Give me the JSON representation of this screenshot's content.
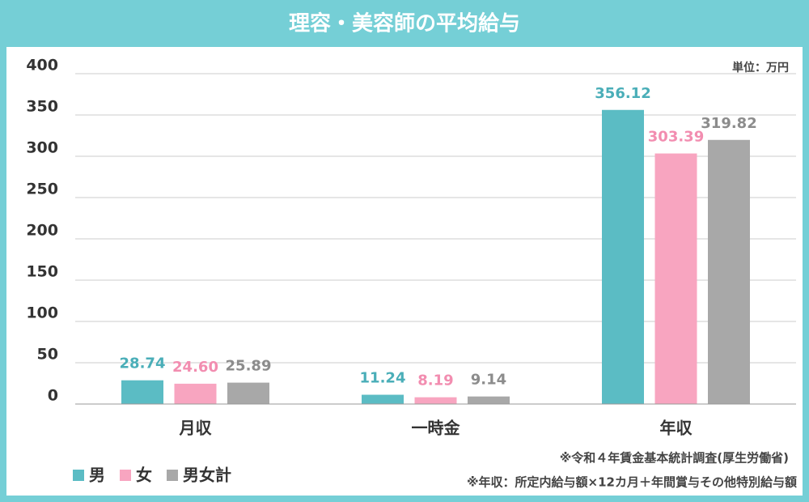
{
  "chart_data": {
    "type": "bar",
    "title": "理容・美容師の平均給与",
    "unit": "単位：万円",
    "categories": [
      "月収",
      "一時金",
      "年収"
    ],
    "series": [
      {
        "name": "男",
        "color": "#5bbcc4",
        "label_color": "#4aaeb8",
        "values": [
          28.74,
          11.24,
          356.12
        ],
        "value_labels": [
          "28.74",
          "11.24",
          "356.12"
        ]
      },
      {
        "name": "女",
        "color": "#f8a5c0",
        "label_color": "#f28db0",
        "values": [
          24.6,
          8.19,
          303.39
        ],
        "value_labels": [
          "24.60",
          "8.19",
          "303.39"
        ]
      },
      {
        "name": "男女計",
        "color": "#a8a8a8",
        "label_color": "#8c8c8c",
        "values": [
          25.89,
          9.14,
          319.82
        ],
        "value_labels": [
          "25.89",
          "9.14",
          "319.82"
        ]
      }
    ],
    "ylim": [
      0,
      400
    ],
    "yticks": [
      0,
      50,
      100,
      150,
      200,
      250,
      300,
      350,
      400
    ],
    "grid": true,
    "notes": [
      "※令和４年賃金基本統計調査(厚生労働省)",
      "※年収：所定内給与額×12カ月＋年間賞与その他特別給与額"
    ]
  }
}
